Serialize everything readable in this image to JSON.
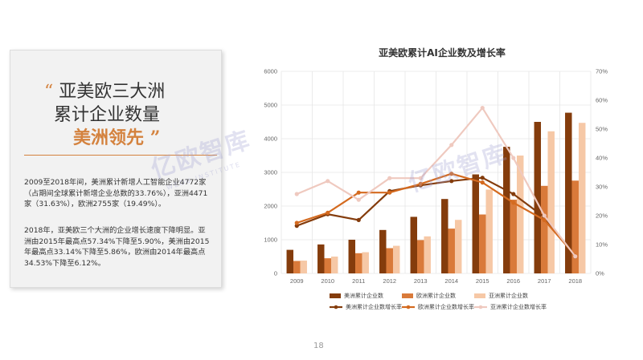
{
  "panel": {
    "quote_open": "“",
    "title_line1": "亚美欧三大洲",
    "title_line2": "累计企业数量",
    "title_highlight": "美洲领先",
    "quote_close": "”",
    "paragraph1": "2009至2018年间，美洲累计新增人工智能企业4772家（占期间全球累计新增企业总数的33.76%），亚洲4471家（31.63%），欧洲2755家（19.49%）。",
    "paragraph2": "2018年，亚美欧三个大洲的企业增长速度下降明显。亚洲由2015年最高点57.34%下降至5.90%，美洲由2015年最高点33.14%下降至5.86%，欧洲由2014年最高点34.53%下降至6.12%。"
  },
  "page_number": "18",
  "watermark": {
    "text": "亿欧智库",
    "sub": "WEOU INSTITUTE"
  },
  "colors": {
    "america": "#843c0c",
    "europe": "#d97a3a",
    "asia": "#f6c8a6",
    "america_line": "#843c0c",
    "europe_line": "#d46a1f",
    "asia_line": "#efc9bf",
    "accent": "#d4823e"
  },
  "chart_data": {
    "type": "bar",
    "title": "亚美欧累计AI企业数及增长率",
    "categories": [
      "2009",
      "2010",
      "2011",
      "2012",
      "2013",
      "2014",
      "2015",
      "2016",
      "2017",
      "2018"
    ],
    "ylim": [
      0,
      6000
    ],
    "y_ticks": [
      "0",
      "1000",
      "2000",
      "3000",
      "4000",
      "5000",
      "6000"
    ],
    "y2lim": [
      0,
      70
    ],
    "y2_ticks": [
      "0%",
      "10%",
      "20%",
      "30%",
      "40%",
      "50%",
      "60%",
      "70%"
    ],
    "grid": true,
    "legend_position": "bottom",
    "series": [
      {
        "name": "美洲累计企业数",
        "kind": "bar",
        "values": [
          700,
          860,
          1000,
          1290,
          1680,
          2210,
          2940,
          3760,
          4500,
          4772
        ]
      },
      {
        "name": "欧洲累计企业数",
        "kind": "bar",
        "values": [
          370,
          450,
          600,
          750,
          990,
          1330,
          1750,
          2190,
          2600,
          2755
        ]
      },
      {
        "name": "亚洲累计企业数",
        "kind": "bar",
        "values": [
          380,
          500,
          630,
          820,
          1100,
          1590,
          2490,
          3500,
          4220,
          4471
        ]
      },
      {
        "name": "美洲累计企业数增长率",
        "kind": "line",
        "values": [
          16.5,
          20.5,
          18.5,
          28.5,
          30.5,
          32.0,
          33.14,
          27.5,
          19.5,
          5.86
        ]
      },
      {
        "name": "欧洲累计企业数增长率",
        "kind": "line",
        "values": [
          17.5,
          21.0,
          28.0,
          28.0,
          31.0,
          34.53,
          31.5,
          24.5,
          18.5,
          6.12
        ]
      },
      {
        "name": "亚洲累计企业数增长率",
        "kind": "line",
        "values": [
          27.5,
          32.0,
          25.5,
          33.0,
          33.0,
          44.5,
          57.34,
          40.0,
          20.0,
          5.9
        ]
      }
    ]
  }
}
